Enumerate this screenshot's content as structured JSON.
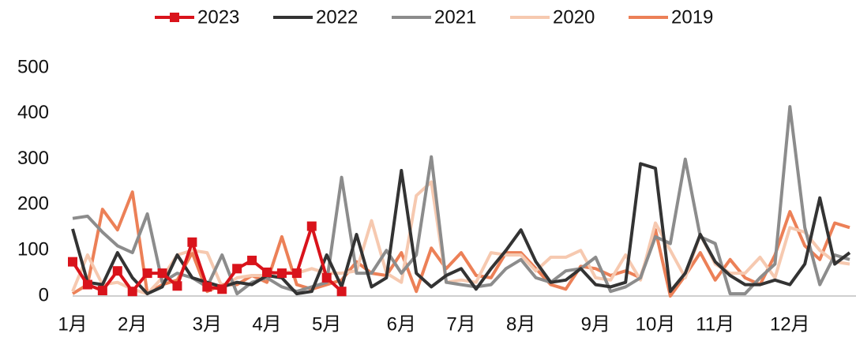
{
  "chart_data": {
    "type": "line",
    "categories": [
      "1月",
      null,
      null,
      null,
      "2月",
      null,
      null,
      null,
      null,
      "3月",
      null,
      null,
      null,
      "4月",
      null,
      null,
      null,
      "5月",
      null,
      null,
      null,
      null,
      "6月",
      null,
      null,
      null,
      "7月",
      null,
      null,
      null,
      "8月",
      null,
      null,
      null,
      null,
      "9月",
      null,
      null,
      null,
      "10月",
      null,
      null,
      null,
      "11月",
      null,
      null,
      null,
      null,
      "12月",
      null,
      null,
      null,
      null
    ],
    "series": [
      {
        "name": "2023",
        "color": "#d9131b",
        "marker": "square",
        "values": [
          75,
          25,
          12,
          55,
          10,
          50,
          50,
          22,
          118,
          20,
          15,
          60,
          78,
          52,
          50,
          50,
          153,
          40,
          10,
          null,
          null,
          null,
          null,
          null,
          null,
          null,
          null,
          null,
          null,
          null,
          null,
          null,
          null,
          null,
          null,
          null,
          null,
          null,
          null,
          null,
          null,
          null,
          null,
          null,
          null,
          null,
          null,
          null,
          null,
          null,
          null,
          null,
          null
        ]
      },
      {
        "name": "2022",
        "color": "#333333",
        "values": [
          147,
          30,
          25,
          95,
          40,
          5,
          20,
          90,
          40,
          30,
          20,
          30,
          25,
          45,
          40,
          5,
          10,
          90,
          20,
          135,
          20,
          40,
          275,
          50,
          20,
          45,
          60,
          15,
          60,
          100,
          145,
          75,
          30,
          35,
          60,
          25,
          20,
          30,
          290,
          280,
          10,
          50,
          135,
          75,
          45,
          25,
          25,
          35,
          25,
          70,
          215,
          70,
          95
        ]
      },
      {
        "name": "2021",
        "color": "#8c8c8c",
        "values": [
          170,
          175,
          140,
          110,
          95,
          180,
          30,
          50,
          40,
          20,
          90,
          5,
          30,
          40,
          20,
          10,
          20,
          30,
          260,
          50,
          50,
          100,
          50,
          90,
          305,
          30,
          25,
          20,
          25,
          60,
          80,
          40,
          30,
          55,
          60,
          85,
          10,
          20,
          40,
          130,
          115,
          300,
          130,
          115,
          5,
          5,
          40,
          70,
          415,
          150,
          25,
          90,
          80
        ]
      },
      {
        "name": "2020",
        "color": "#f6c9b0",
        "values": [
          10,
          90,
          25,
          30,
          15,
          5,
          40,
          90,
          100,
          95,
          20,
          40,
          45,
          45,
          55,
          50,
          60,
          50,
          50,
          55,
          165,
          50,
          30,
          220,
          250,
          30,
          35,
          30,
          95,
          90,
          90,
          55,
          85,
          85,
          100,
          40,
          35,
          90,
          35,
          160,
          100,
          40,
          135,
          70,
          50,
          50,
          85,
          40,
          150,
          140,
          100,
          75,
          70
        ]
      },
      {
        "name": "2019",
        "color": "#ec8057",
        "values": [
          5,
          25,
          190,
          145,
          228,
          5,
          25,
          35,
          95,
          10,
          25,
          25,
          45,
          30,
          130,
          25,
          15,
          25,
          35,
          75,
          50,
          45,
          95,
          10,
          105,
          60,
          95,
          45,
          40,
          95,
          95,
          60,
          25,
          15,
          65,
          60,
          45,
          55,
          40,
          145,
          0,
          45,
          95,
          35,
          80,
          40,
          25,
          90,
          185,
          110,
          80,
          160,
          150
        ]
      }
    ],
    "ylim": [
      0,
      500
    ],
    "yticks": [
      0,
      100,
      200,
      300,
      400,
      500
    ],
    "grid": false,
    "legend": "top"
  }
}
